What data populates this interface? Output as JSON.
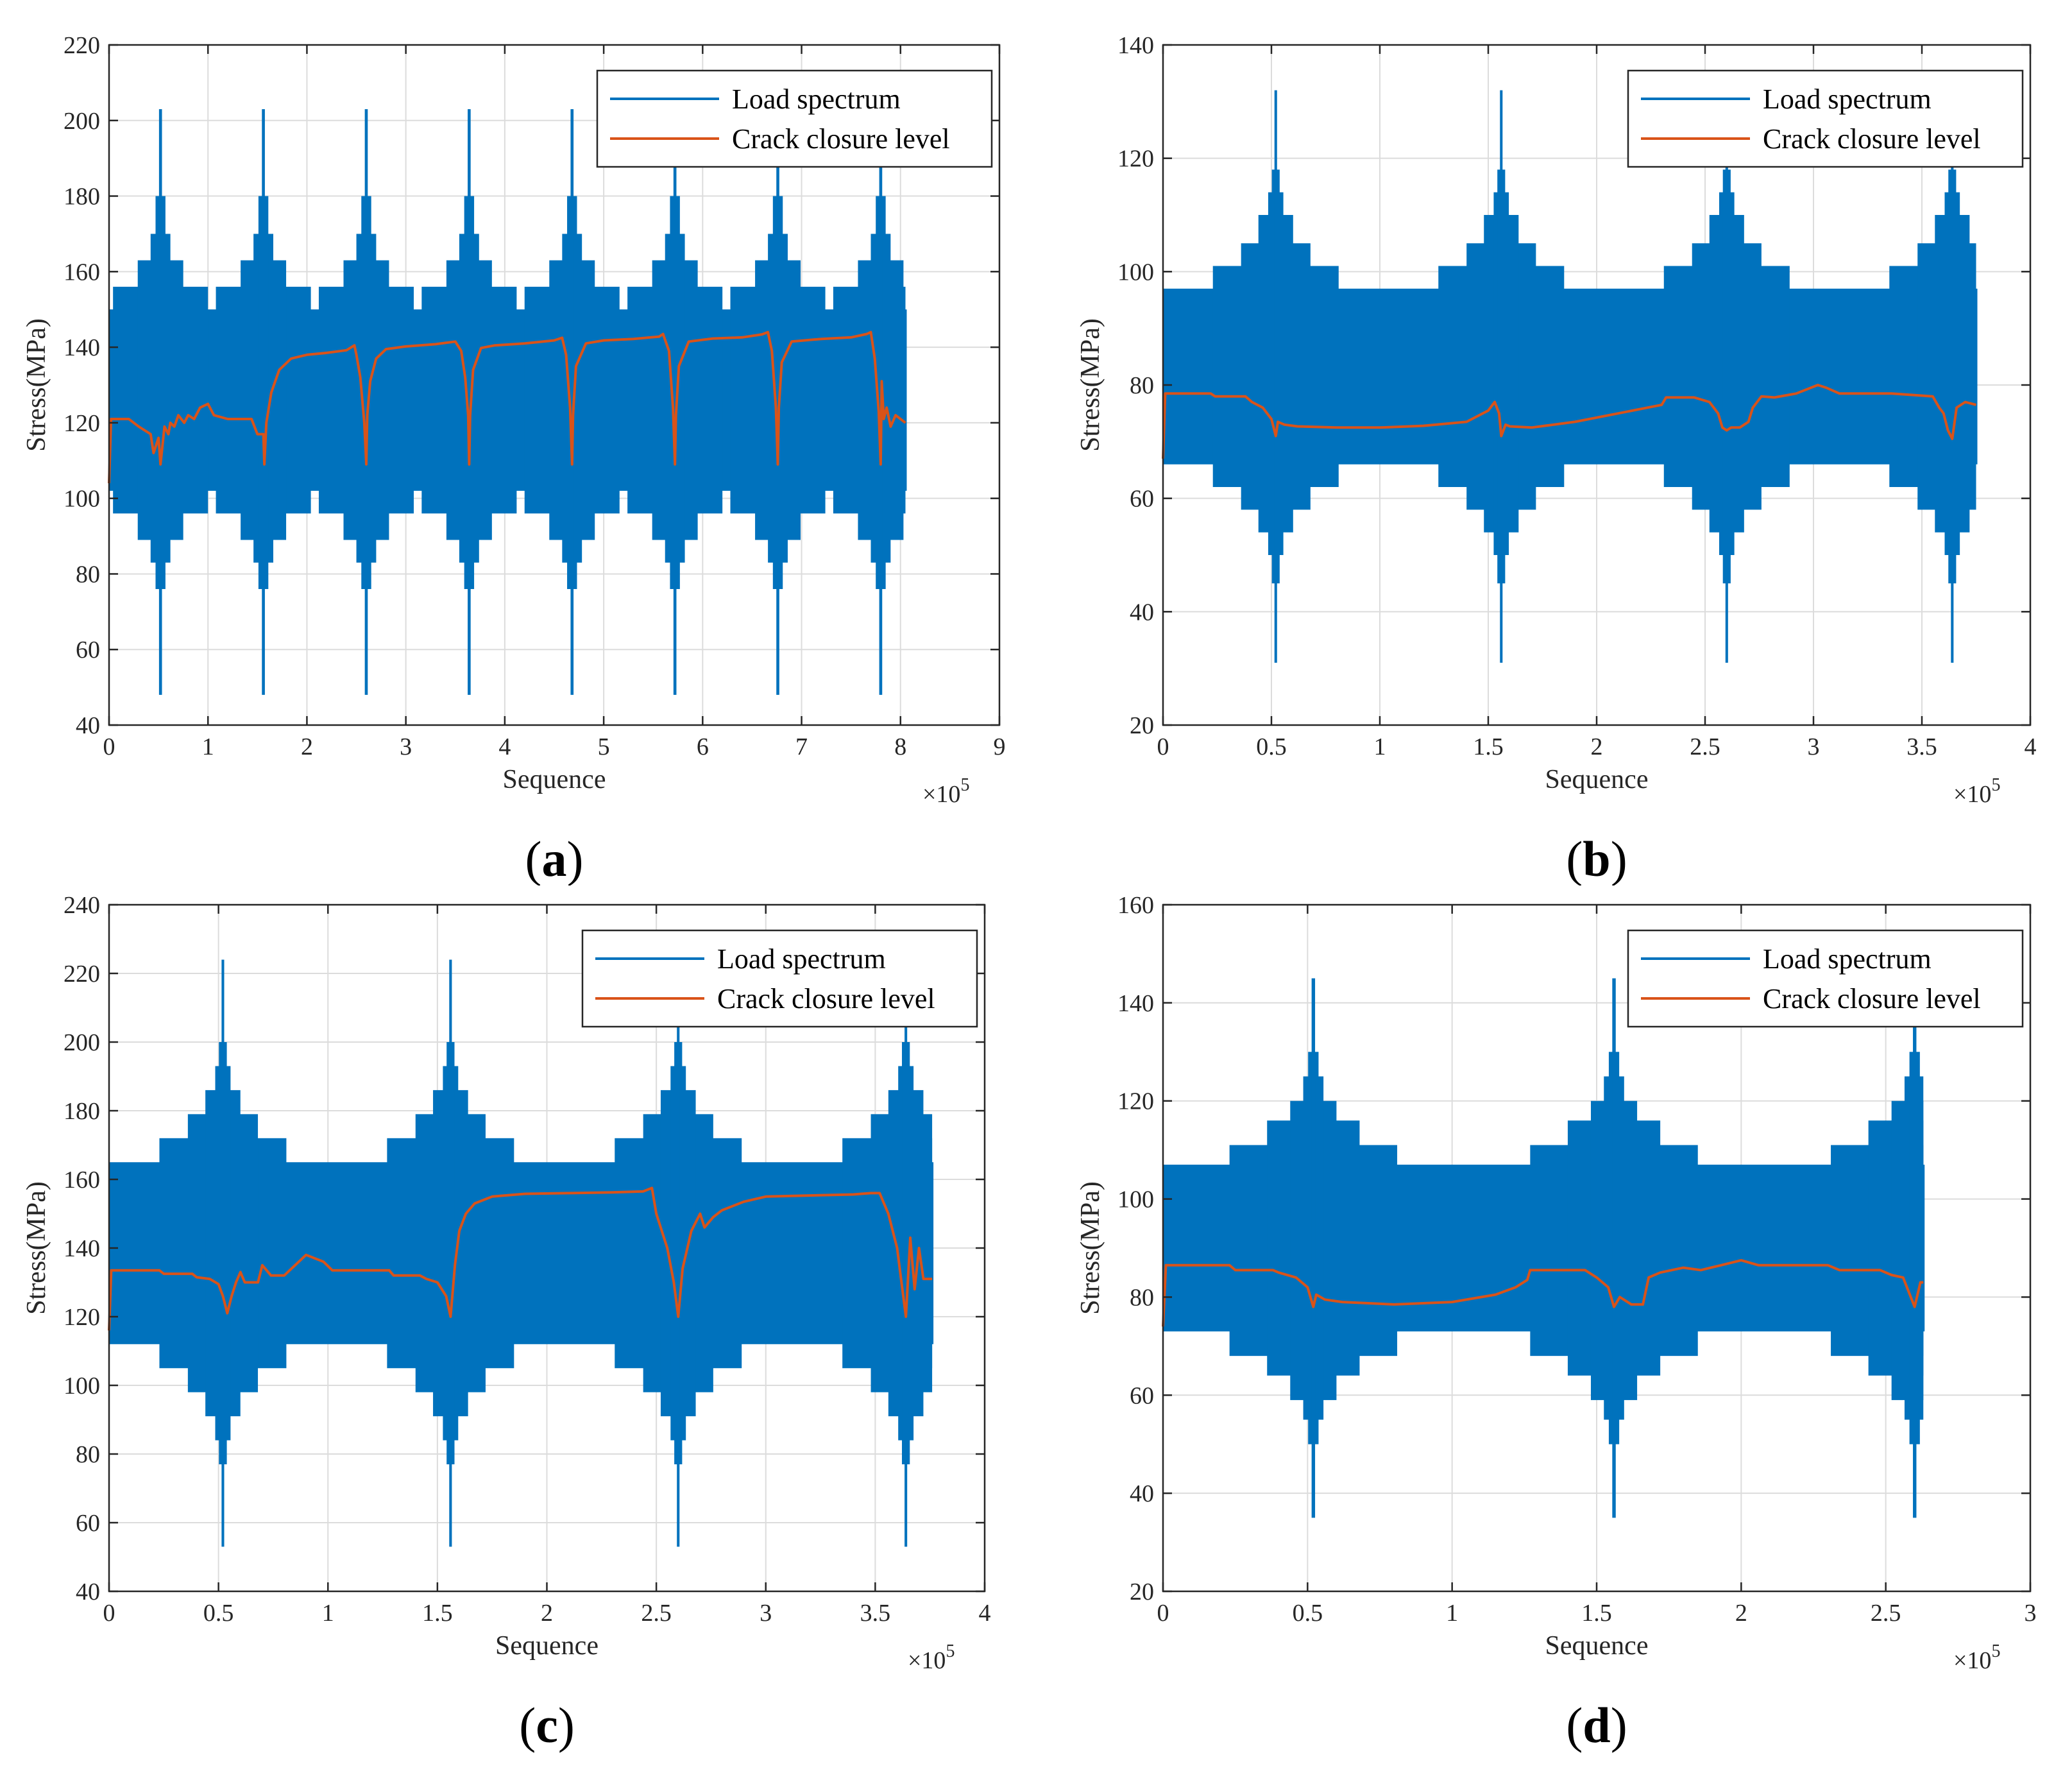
{
  "chart_data": [
    {
      "type": "line",
      "panel_label": "(a)",
      "label_letter": "a",
      "xlabel": "Sequence",
      "ylabel": "Stress(MPa)",
      "x_exponent_base": "×10",
      "x_exponent_power": "5",
      "xlim": [
        0,
        9
      ],
      "ylim": [
        40,
        220
      ],
      "xticks": [
        0,
        1,
        2,
        3,
        4,
        5,
        6,
        7,
        8,
        9
      ],
      "yticks": [
        40,
        60,
        80,
        100,
        120,
        140,
        160,
        180,
        200,
        220
      ],
      "grid": true,
      "legend_position": "top-right",
      "legend": [
        "Load spectrum",
        "Crack closure level"
      ],
      "series": [
        {
          "name": "Load spectrum",
          "color": "#0072BD",
          "x_end": 8.05,
          "base_band": [
            102,
            150
          ],
          "peak_positions": [
            0.52,
            1.56,
            2.6,
            3.64,
            4.68,
            5.72,
            6.76,
            7.8
          ],
          "steps": [
            [
              0.48,
              96,
              156
            ],
            [
              0.23,
              89,
              163
            ],
            [
              0.1,
              83,
              170
            ],
            [
              0.05,
              76,
              180
            ],
            [
              0.015,
              48,
              203
            ]
          ],
          "line_y": [
            60,
            45,
            44,
            45,
            44,
            47,
            48,
            46,
            47,
            49,
            48,
            47,
            46
          ]
        },
        {
          "name": "Crack closure level",
          "color": "#D95319",
          "x": [
            0,
            0.02,
            0.2,
            0.3,
            0.42,
            0.45,
            0.5,
            0.52,
            0.56,
            0.6,
            0.62,
            0.66,
            0.7,
            0.76,
            0.8,
            0.86,
            0.92,
            1.0,
            1.06,
            1.2,
            1.3,
            1.44,
            1.5,
            1.56,
            1.57,
            1.59,
            1.64,
            1.72,
            1.84,
            2.0,
            2.2,
            2.4,
            2.48,
            2.5,
            2.54,
            2.58,
            2.6,
            2.61,
            2.64,
            2.7,
            2.8,
            3.0,
            3.3,
            3.5,
            3.56,
            3.6,
            3.63,
            3.64,
            3.65,
            3.68,
            3.76,
            3.9,
            4.2,
            4.5,
            4.58,
            4.62,
            4.66,
            4.68,
            4.69,
            4.72,
            4.82,
            5.0,
            5.3,
            5.56,
            5.6,
            5.66,
            5.7,
            5.72,
            5.73,
            5.76,
            5.86,
            6.1,
            6.4,
            6.6,
            6.66,
            6.7,
            6.74,
            6.76,
            6.77,
            6.8,
            6.9,
            7.2,
            7.5,
            7.66,
            7.7,
            7.74,
            7.78,
            7.8,
            7.81,
            7.83,
            7.86,
            7.9,
            7.95,
            8.0,
            8.05
          ],
          "y": [
            104,
            121,
            121,
            119,
            117,
            112,
            116,
            109,
            119,
            117,
            120,
            119,
            122,
            120,
            122,
            121,
            124,
            125,
            122,
            121,
            121,
            121,
            117,
            117,
            109,
            120,
            128,
            134,
            137,
            138,
            138.5,
            139.2,
            140.5,
            138,
            132,
            120,
            109,
            122,
            131,
            137,
            139.5,
            140.2,
            140.8,
            141.5,
            139,
            132,
            122,
            109,
            122,
            134,
            139.8,
            140.5,
            141,
            141.8,
            142.5,
            138,
            124,
            109,
            122,
            135,
            141,
            141.8,
            142.2,
            142.8,
            143.5,
            139,
            124,
            109,
            122,
            135,
            141.5,
            142.3,
            142.6,
            143.4,
            144,
            139,
            124,
            109,
            124,
            136,
            141.5,
            142.2,
            142.6,
            143.5,
            144,
            137,
            123,
            109,
            131,
            121,
            124,
            119,
            122,
            121,
            120
          ]
        }
      ]
    },
    {
      "type": "line",
      "panel_label": "(b)",
      "label_letter": "b",
      "xlabel": "Sequence",
      "ylabel": "Stress(MPa)",
      "x_exponent_base": "×10",
      "x_exponent_power": "5",
      "xlim": [
        0,
        4
      ],
      "ylim": [
        20,
        140
      ],
      "xticks": [
        0,
        0.5,
        1,
        1.5,
        2,
        2.5,
        3,
        3.5,
        4
      ],
      "yticks": [
        20,
        40,
        60,
        80,
        100,
        120,
        140
      ],
      "grid": true,
      "legend_position": "top-right",
      "legend": [
        "Load spectrum",
        "Crack closure level"
      ],
      "series": [
        {
          "name": "Load spectrum",
          "color": "#0072BD",
          "x_end": 3.75,
          "base_band": [
            66,
            97
          ],
          "peak_positions": [
            0.52,
            1.56,
            2.6,
            3.64
          ],
          "steps": [
            [
              0.29,
              62,
              101
            ],
            [
              0.16,
              58,
              105
            ],
            [
              0.08,
              54,
              110
            ],
            [
              0.035,
              50,
              114
            ],
            [
              0.018,
              45,
              118
            ],
            [
              0.006,
              31,
              132
            ]
          ],
          "line_y": [
            83,
            81,
            82,
            82,
            81,
            80,
            80
          ]
        },
        {
          "name": "Crack closure level",
          "color": "#D95319",
          "x": [
            0,
            0.01,
            0.22,
            0.24,
            0.38,
            0.41,
            0.46,
            0.5,
            0.52,
            0.53,
            0.56,
            0.62,
            0.8,
            1.0,
            1.2,
            1.4,
            1.5,
            1.53,
            1.55,
            1.56,
            1.58,
            1.6,
            1.7,
            1.9,
            2.1,
            2.3,
            2.32,
            2.45,
            2.52,
            2.56,
            2.58,
            2.6,
            2.62,
            2.66,
            2.7,
            2.72,
            2.76,
            2.82,
            2.92,
            3.02,
            3.06,
            3.12,
            3.3,
            3.36,
            3.55,
            3.58,
            3.6,
            3.62,
            3.64,
            3.66,
            3.7,
            3.75
          ],
          "y": [
            67,
            78.5,
            78.5,
            78,
            78,
            77,
            76,
            74,
            71,
            73.5,
            73,
            72.7,
            72.5,
            72.5,
            72.8,
            73.5,
            75.5,
            77,
            75,
            71,
            73,
            72.7,
            72.5,
            73.5,
            75,
            76.5,
            77.8,
            77.8,
            77,
            75,
            72.5,
            72,
            72.5,
            72.5,
            73.5,
            76,
            78,
            77.8,
            78.5,
            80,
            79.5,
            78.5,
            78.5,
            78.5,
            78,
            76,
            75,
            72,
            70.5,
            76,
            77,
            76.5
          ]
        }
      ]
    },
    {
      "type": "line",
      "panel_label": "(c)",
      "label_letter": "c",
      "xlabel": "Sequence",
      "ylabel": "Stress(MPa)",
      "x_exponent_base": "×10",
      "x_exponent_power": "5",
      "xlim": [
        0,
        4
      ],
      "ylim": [
        40,
        240
      ],
      "xticks": [
        0,
        0.5,
        1,
        1.5,
        2,
        2.5,
        3,
        3.5,
        4
      ],
      "yticks": [
        40,
        60,
        80,
        100,
        120,
        140,
        160,
        180,
        200,
        220,
        240
      ],
      "grid": true,
      "legend_position": "top-right",
      "legend": [
        "Load spectrum",
        "Crack closure level"
      ],
      "series": [
        {
          "name": "Load spectrum",
          "color": "#0072BD",
          "x_end": 3.76,
          "base_band": [
            112,
            165
          ],
          "peak_positions": [
            0.52,
            1.56,
            2.6,
            3.64
          ],
          "steps": [
            [
              0.29,
              105,
              172
            ],
            [
              0.16,
              98,
              179
            ],
            [
              0.08,
              91,
              186
            ],
            [
              0.035,
              84,
              193
            ],
            [
              0.018,
              77,
              200
            ],
            [
              0.006,
              53,
              224
            ]
          ],
          "line_y": [
            179,
            98,
            98,
            99
          ]
        },
        {
          "name": "Crack closure level",
          "color": "#D95319",
          "x": [
            0,
            0.01,
            0.23,
            0.25,
            0.38,
            0.4,
            0.46,
            0.5,
            0.52,
            0.54,
            0.56,
            0.58,
            0.6,
            0.62,
            0.68,
            0.7,
            0.74,
            0.8,
            0.9,
            0.98,
            1.02,
            1.2,
            1.28,
            1.3,
            1.42,
            1.45,
            1.5,
            1.54,
            1.56,
            1.58,
            1.6,
            1.63,
            1.67,
            1.75,
            1.9,
            2.1,
            2.3,
            2.44,
            2.48,
            2.5,
            2.55,
            2.58,
            2.6,
            2.62,
            2.66,
            2.7,
            2.72,
            2.76,
            2.8,
            2.9,
            3.0,
            3.2,
            3.4,
            3.48,
            3.52,
            3.56,
            3.6,
            3.62,
            3.64,
            3.66,
            3.68,
            3.7,
            3.72,
            3.76
          ],
          "y": [
            116,
            133.5,
            133.5,
            132.5,
            132.5,
            131.5,
            131,
            129.5,
            126,
            121,
            126,
            130,
            133,
            130,
            130,
            135,
            132,
            132,
            138,
            136,
            133.5,
            133.5,
            133.5,
            132,
            132,
            131,
            130,
            126,
            120,
            135,
            145,
            150,
            153,
            155,
            155.8,
            156,
            156.2,
            156.5,
            157.5,
            150,
            140,
            130,
            120,
            134,
            145,
            150,
            146,
            149,
            151,
            153.5,
            155,
            155.3,
            155.6,
            156,
            156,
            150,
            140,
            130,
            120,
            143,
            128,
            140,
            131,
            131
          ]
        }
      ]
    },
    {
      "type": "line",
      "panel_label": "(d)",
      "label_letter": "d",
      "xlabel": "Sequence",
      "ylabel": "Stress(MPa)",
      "x_exponent_base": "×10",
      "x_exponent_power": "5",
      "xlim": [
        0,
        3
      ],
      "ylim": [
        20,
        160
      ],
      "xticks": [
        0,
        0.5,
        1,
        1.5,
        2,
        2.5,
        3
      ],
      "yticks": [
        20,
        40,
        60,
        80,
        100,
        120,
        140,
        160
      ],
      "grid": true,
      "legend_position": "top-right",
      "legend": [
        "Load spectrum",
        "Crack closure level"
      ],
      "series": [
        {
          "name": "Load spectrum",
          "color": "#0072BD",
          "x_end": 2.63,
          "base_band": [
            73,
            107
          ],
          "peak_positions": [
            0.52,
            1.56,
            2.6
          ],
          "steps": [
            [
              0.29,
              68,
              111
            ],
            [
              0.16,
              64,
              116
            ],
            [
              0.08,
              59,
              120
            ],
            [
              0.035,
              55,
              125
            ],
            [
              0.018,
              50,
              130
            ],
            [
              0.006,
              35,
              145
            ]
          ],
          "line_y": [
            92,
            90,
            90
          ]
        },
        {
          "name": "Crack closure level",
          "color": "#D95319",
          "x": [
            0,
            0.01,
            0.23,
            0.25,
            0.38,
            0.4,
            0.46,
            0.5,
            0.52,
            0.53,
            0.56,
            0.62,
            0.8,
            1.0,
            1.15,
            1.22,
            1.26,
            1.27,
            1.29,
            1.46,
            1.5,
            1.54,
            1.56,
            1.58,
            1.62,
            1.66,
            1.68,
            1.72,
            1.8,
            1.86,
            1.93,
            2.0,
            2.06,
            2.3,
            2.34,
            2.48,
            2.52,
            2.56,
            2.58,
            2.6,
            2.62,
            2.63
          ],
          "y": [
            74,
            86.5,
            86.5,
            85.5,
            85.5,
            85,
            84,
            82,
            78,
            80.5,
            79.5,
            79,
            78.5,
            79,
            80.5,
            82,
            83.5,
            85.5,
            85.5,
            85.5,
            84,
            82,
            78,
            80,
            78.5,
            78.5,
            84,
            85,
            86,
            85.5,
            86.5,
            87.5,
            86.5,
            86.5,
            85.5,
            85.5,
            84.5,
            84,
            81,
            78,
            83,
            83
          ]
        }
      ]
    }
  ]
}
